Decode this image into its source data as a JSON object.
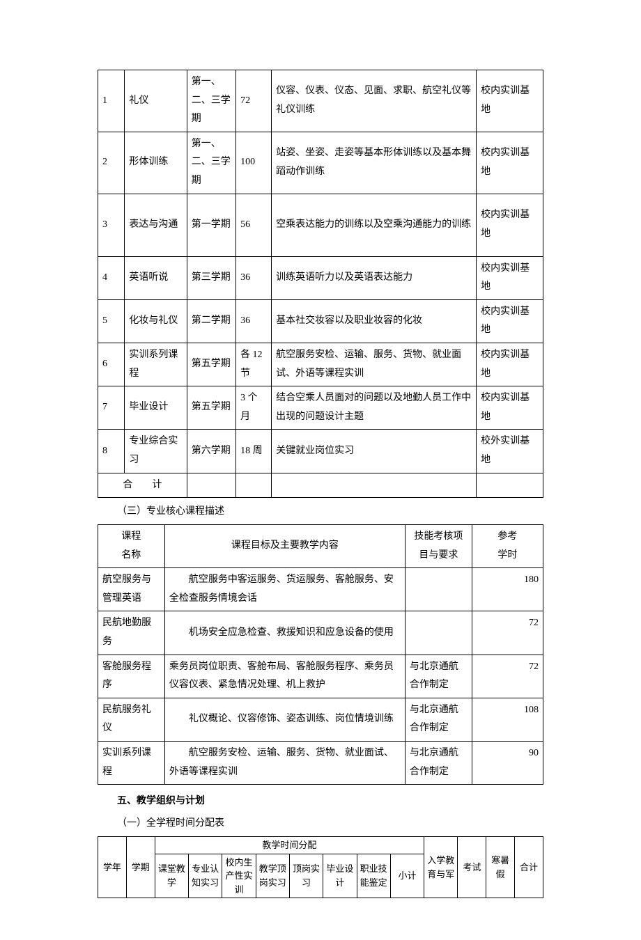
{
  "table1": {
    "rows": [
      {
        "n": "1",
        "name": "礼仪",
        "term": "第一、二、三学期",
        "hours": "72",
        "content": "仪容、仪表、仪态、见面、求职、航空礼仪等礼仪训练",
        "loc": "校内实训基地"
      },
      {
        "n": "2",
        "name": "形体训练",
        "term": "第一、二、三学期",
        "hours": "100",
        "content": "站姿、坐姿、走姿等基本形体训练以及基本舞蹈动作训练",
        "loc": "校内实训基地"
      },
      {
        "n": "3",
        "name": "表达与沟通",
        "term": "第一学期",
        "hours": "56",
        "content": "空乘表达能力的训练以及空乘沟通能力的训练",
        "loc": "校内实训基地"
      },
      {
        "n": "4",
        "name": "英语听说",
        "term": "第三学期",
        "hours": "36",
        "content": "训练英语听力以及英语表达能力",
        "loc": "校内实训基地"
      },
      {
        "n": "5",
        "name": "化妆与礼仪",
        "term": "第二学期",
        "hours": "36",
        "content": "基本社交妆容以及职业妆容的化妆",
        "loc": "校内实训基地"
      },
      {
        "n": "6",
        "name": "实训系列课程",
        "term": "第五学期",
        "hours": "各 12节",
        "content": "航空服务安检、运输、服务、货物、就业面试、外语等课程实训",
        "loc": "校内实训基地"
      },
      {
        "n": "7",
        "name": "毕业设计",
        "term": "第五学期",
        "hours": "3 个月",
        "content": "结合空乘人员面对的问题以及地勤人员工作中出现的问题设计主题",
        "loc": "校内实训基地"
      },
      {
        "n": "8",
        "name": "专业综合实习",
        "term": "第六学期",
        "hours": "18 周",
        "content": "关键就业岗位实习",
        "loc": "校外实训基地"
      }
    ],
    "total_label": "合　　计"
  },
  "section3_label": "（三）专业核心课程描述",
  "table2": {
    "headers": {
      "name": "课程\n名称",
      "content": "课程目标及主要教学内容",
      "req": "技能考核项目与要求",
      "hours": "参考\n学时"
    },
    "rows": [
      {
        "name": "航空服务与管理英语",
        "content": "　　航空服务中客运服务、货运服务、客舱服务、安全检查服务情境会话",
        "req": "",
        "hours": "180"
      },
      {
        "name": "民航地勤服务",
        "content": "　　机场安全应急检查、救援知识和应急设备的使用",
        "req": "",
        "hours": "72"
      },
      {
        "name": "客舱服务程序",
        "content": "乘务员岗位职责、客舱布局、客舱服务程序、乘务员仪容仪表、紧急情况处理、机上救护",
        "req": "与北京通航合作制定",
        "hours": "72"
      },
      {
        "name": "民航服务礼仪",
        "content": "　　礼仪概论、仪容修饰、姿态训练、岗位情境训练",
        "req": "与北京通航合作制定",
        "hours": "108"
      },
      {
        "name": "实训系列课程",
        "content": "　　航空服务安检、运输、服务、货物、就业面试、外语等课程实训",
        "req": "与北京通航合作制定",
        "hours": "90"
      }
    ]
  },
  "section5_header": "五、教学组织与计划",
  "section5_sub": "（一）全学程时间分配表",
  "table3": {
    "group_header": "教学时间分配",
    "cols": {
      "year": "学年",
      "term": "学期",
      "classroom": "课堂教学",
      "cognition": "专业认知实习",
      "prod": "校内生产性实训",
      "top": "教学顶岗实习",
      "dinggang": "顶岗实习",
      "grad": "毕业设计",
      "skill": "职业技能鉴定",
      "subtotal": "小计",
      "entry": "入学教育与军",
      "exam": "考试",
      "holiday": "寒暑假",
      "total": "合计"
    }
  }
}
